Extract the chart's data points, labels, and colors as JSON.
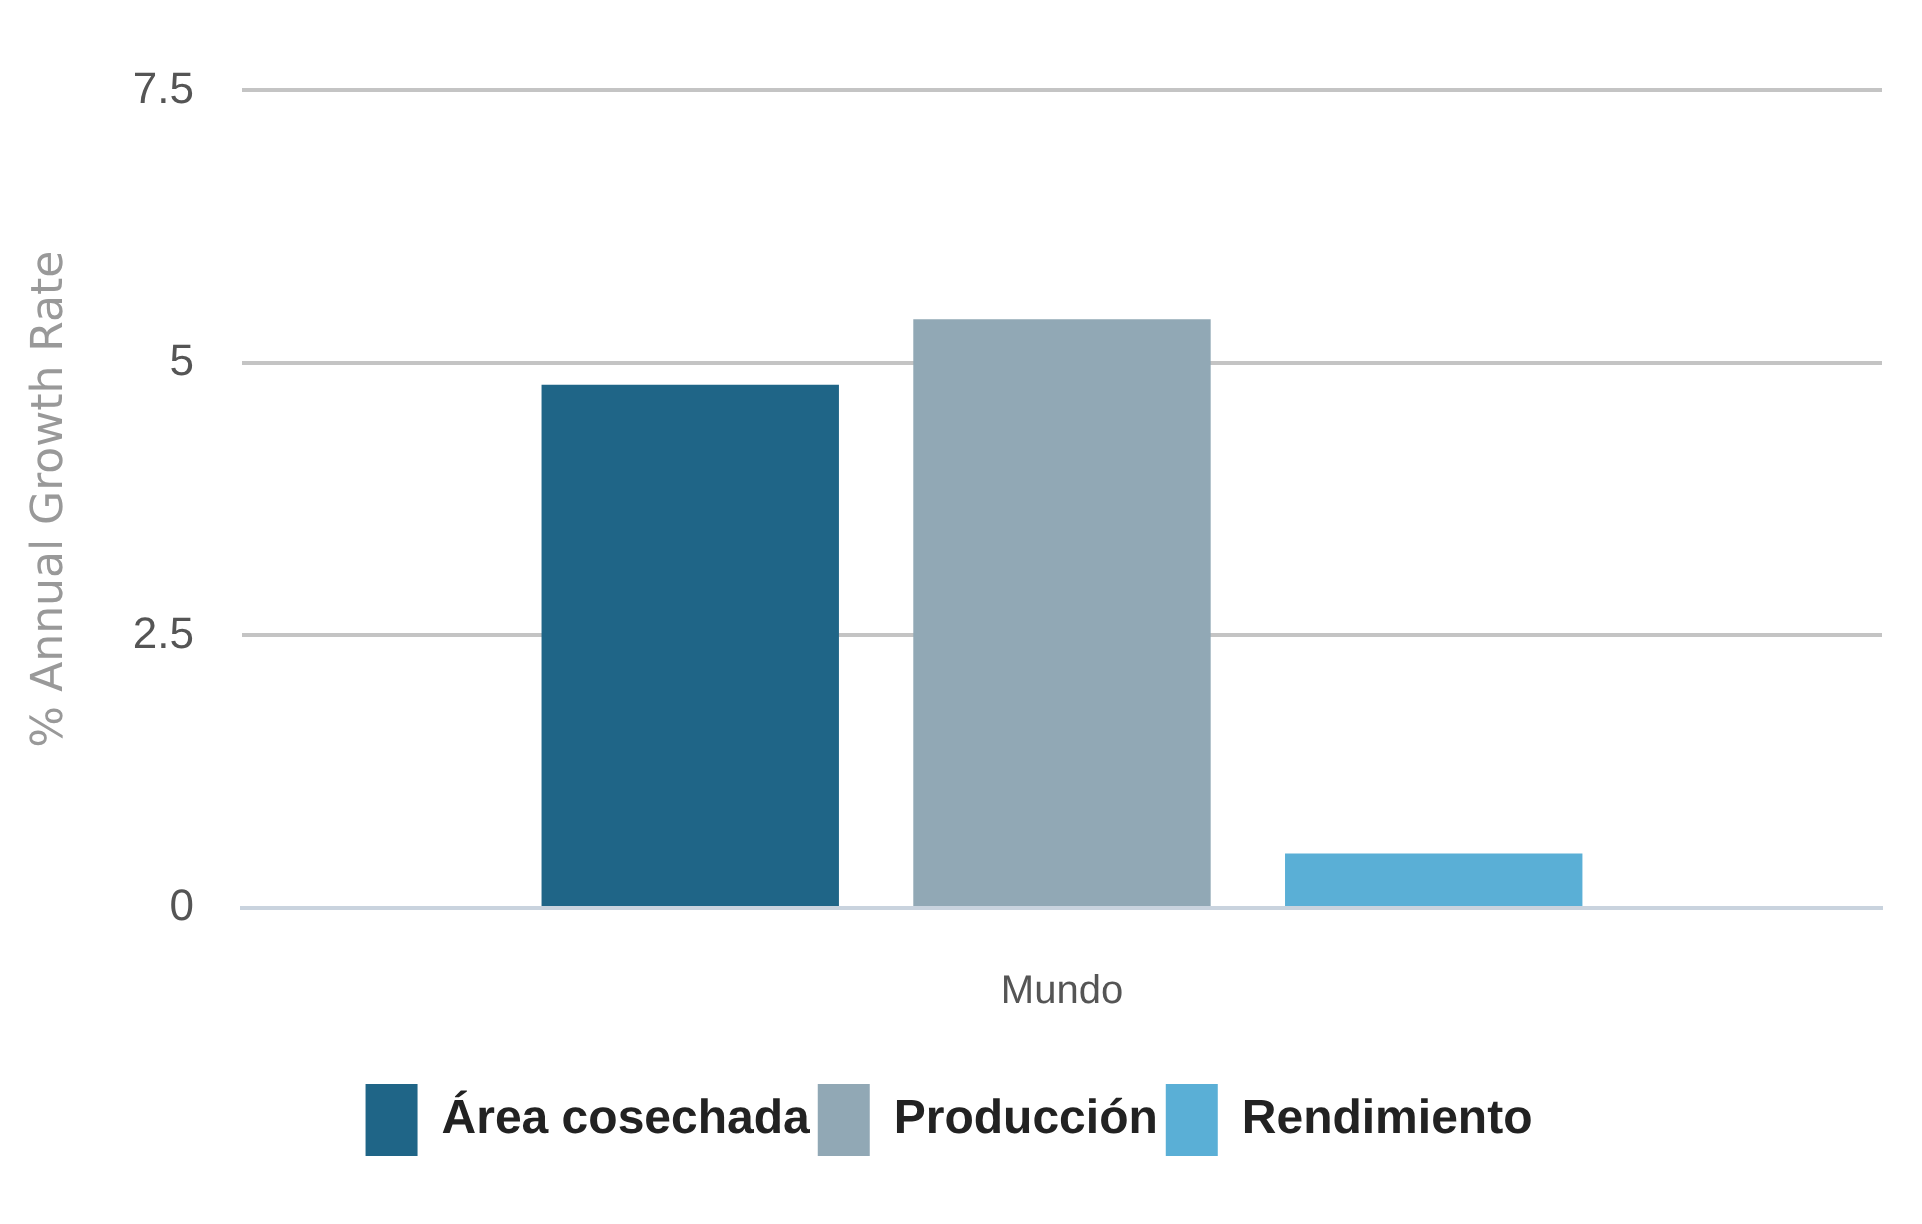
{
  "chart_data": {
    "type": "bar",
    "ylabel": "% Annual Growth Rate",
    "categories": [
      "Mundo"
    ],
    "series": [
      {
        "name": "Área cosechada",
        "color": "#1f6587",
        "values": [
          4.8
        ]
      },
      {
        "name": "Producción",
        "color": "#91a8b5",
        "values": [
          5.4
        ]
      },
      {
        "name": "Rendimiento",
        "color": "#5aafd6",
        "values": [
          0.5
        ]
      }
    ],
    "ylim": [
      0,
      7.5
    ],
    "yticks": [
      0,
      2.5,
      5,
      7.5
    ],
    "grid": "y",
    "legend": "bottom"
  }
}
